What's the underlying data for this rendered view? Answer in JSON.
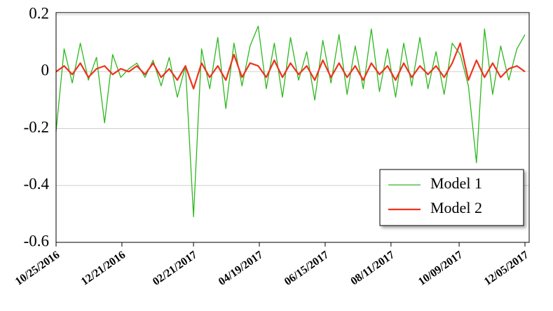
{
  "chart_data": {
    "type": "line",
    "x": [
      "10/25/2016",
      "11/01/2016",
      "11/08/2016",
      "11/15/2016",
      "11/22/2016",
      "11/29/2016",
      "12/06/2016",
      "12/13/2016",
      "12/20/2016",
      "12/27/2016",
      "01/03/2017",
      "01/10/2017",
      "01/17/2017",
      "01/24/2017",
      "01/31/2017",
      "02/07/2017",
      "02/14/2017",
      "02/21/2017",
      "02/28/2017",
      "03/07/2017",
      "03/14/2017",
      "03/21/2017",
      "03/28/2017",
      "04/04/2017",
      "04/11/2017",
      "04/18/2017",
      "04/25/2017",
      "05/02/2017",
      "05/09/2017",
      "05/16/2017",
      "05/23/2017",
      "05/30/2017",
      "06/06/2017",
      "06/13/2017",
      "06/20/2017",
      "06/27/2017",
      "07/04/2017",
      "07/11/2017",
      "07/18/2017",
      "07/25/2017",
      "08/01/2017",
      "08/08/2017",
      "08/15/2017",
      "08/22/2017",
      "08/29/2017",
      "09/05/2017",
      "09/12/2017",
      "09/19/2017",
      "09/26/2017",
      "10/03/2017",
      "10/10/2017",
      "10/17/2017",
      "10/24/2017",
      "10/31/2017",
      "11/07/2017",
      "11/14/2017",
      "11/21/2017",
      "11/28/2017",
      "12/05/2017"
    ],
    "series": [
      {
        "name": "Model 1",
        "color": "#2db81e",
        "width": 1.3,
        "values": [
          -0.21,
          0.08,
          -0.04,
          0.1,
          -0.03,
          0.05,
          -0.18,
          0.06,
          -0.02,
          0.01,
          0.03,
          -0.02,
          0.04,
          -0.05,
          0.05,
          -0.09,
          0.02,
          -0.51,
          0.08,
          -0.06,
          0.12,
          -0.13,
          0.1,
          -0.05,
          0.09,
          0.16,
          -0.06,
          0.1,
          -0.09,
          0.12,
          -0.03,
          0.07,
          -0.1,
          0.11,
          -0.04,
          0.13,
          -0.08,
          0.09,
          -0.06,
          0.15,
          -0.07,
          0.08,
          -0.09,
          0.1,
          -0.05,
          0.12,
          -0.06,
          0.07,
          -0.08,
          0.1,
          0.06,
          -0.05,
          -0.32,
          0.15,
          -0.08,
          0.09,
          -0.03,
          0.08,
          0.13
        ]
      },
      {
        "name": "Model 2",
        "color": "#f0321e",
        "width": 2.2,
        "values": [
          0,
          0.02,
          -0.01,
          0.03,
          -0.02,
          0.01,
          0.02,
          -0.01,
          0.01,
          0,
          0.02,
          -0.01,
          0.03,
          -0.02,
          0.01,
          -0.03,
          0.02,
          -0.06,
          0.03,
          -0.02,
          0.02,
          -0.03,
          0.06,
          -0.02,
          0.03,
          0.02,
          -0.02,
          0.04,
          -0.02,
          0.03,
          -0.01,
          0.02,
          -0.03,
          0.04,
          -0.02,
          0.03,
          -0.02,
          0.02,
          -0.03,
          0.03,
          -0.01,
          0.02,
          -0.03,
          0.03,
          -0.02,
          0.02,
          -0.01,
          0.02,
          -0.02,
          0.03,
          0.1,
          -0.03,
          0.04,
          -0.02,
          0.03,
          -0.02,
          0.01,
          0.02,
          0
        ]
      }
    ],
    "xlim": [
      "10/25/2016",
      "12/05/2017"
    ],
    "xticks": [
      "10/25/2016",
      "12/21/2016",
      "02/21/2017",
      "04/19/2017",
      "06/15/2017",
      "08/11/2017",
      "10/09/2017",
      "12/05/2017"
    ],
    "ylim": [
      -0.6,
      0.2
    ],
    "yticks": [
      0.2,
      0,
      -0.2,
      -0.4,
      -0.6
    ],
    "grid": true,
    "legend": "lower-right"
  }
}
